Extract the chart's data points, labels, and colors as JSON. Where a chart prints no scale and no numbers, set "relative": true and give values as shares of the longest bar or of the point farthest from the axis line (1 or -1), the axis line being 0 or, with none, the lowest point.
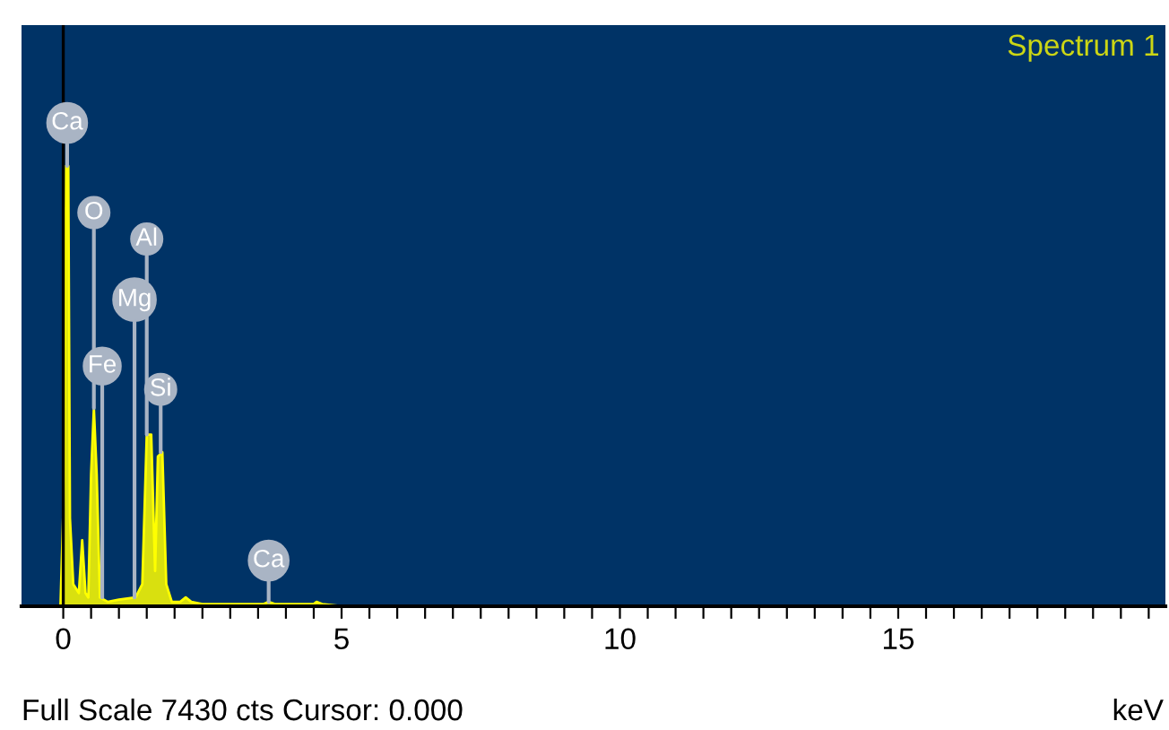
{
  "chart_data": {
    "type": "area",
    "relative": true,
    "xlabel": "keV",
    "x": [
      -0.05,
      0.02,
      0.05,
      0.09,
      0.12,
      0.18,
      0.28,
      0.34,
      0.4,
      0.45,
      0.5,
      0.55,
      0.6,
      0.66,
      0.8,
      1.0,
      1.3,
      1.42,
      1.5,
      1.58,
      1.65,
      1.7,
      1.78,
      1.85,
      1.95,
      2.1,
      2.2,
      2.3,
      2.5,
      3.6,
      3.69,
      3.8,
      4.5,
      4.55,
      4.65,
      5.0,
      19.8
    ],
    "series": [
      {
        "name": "Spectrum 1",
        "color": "#ffff00",
        "values": [
          0,
          0.3,
          1.0,
          1.0,
          0.2,
          0.05,
          0.03,
          0.15,
          0.03,
          0.02,
          0.3,
          0.45,
          0.3,
          0.02,
          0.01,
          0.015,
          0.02,
          0.05,
          0.39,
          0.39,
          0.08,
          0.34,
          0.35,
          0.05,
          0.01,
          0.01,
          0.02,
          0.01,
          0.005,
          0.005,
          0.01,
          0.005,
          0.005,
          0.01,
          0.005,
          0,
          0
        ]
      }
    ],
    "xlim": [
      -0.75,
      19.8
    ],
    "xticks": [
      0,
      {
        "value": 0.5,
        "label": null
      },
      {
        "value": 1,
        "label": null
      },
      {
        "value": 1.5,
        "label": null
      },
      {
        "value": 2,
        "label": null
      },
      {
        "value": 2.5,
        "label": null
      },
      {
        "value": 3,
        "label": null
      },
      {
        "value": 3.5,
        "label": null
      },
      {
        "value": 4,
        "label": null
      },
      {
        "value": 4.5,
        "label": null
      },
      5,
      {
        "value": 5.5,
        "label": null
      },
      {
        "value": 6,
        "label": null
      },
      {
        "value": 6.5,
        "label": null
      },
      {
        "value": 7,
        "label": null
      },
      {
        "value": 7.5,
        "label": null
      },
      {
        "value": 8,
        "label": null
      },
      {
        "value": 8.5,
        "label": null
      },
      {
        "value": 9,
        "label": null
      },
      {
        "value": 9.5,
        "label": null
      },
      10,
      {
        "value": 10.5,
        "label": null
      },
      {
        "value": 11,
        "label": null
      },
      {
        "value": 11.5,
        "label": null
      },
      {
        "value": 12,
        "label": null
      },
      {
        "value": 12.5,
        "label": null
      },
      {
        "value": 13,
        "label": null
      },
      {
        "value": 13.5,
        "label": null
      },
      {
        "value": 14,
        "label": null
      },
      {
        "value": 14.5,
        "label": null
      },
      15,
      {
        "value": 15.5,
        "label": null
      },
      {
        "value": 16,
        "label": null
      },
      {
        "value": 16.5,
        "label": null
      },
      {
        "value": 17,
        "label": null
      },
      {
        "value": 17.5,
        "label": null
      },
      {
        "value": 18,
        "label": null
      },
      {
        "value": 18.5,
        "label": null
      },
      {
        "value": 19,
        "label": null
      },
      {
        "value": 19.5,
        "label": null
      }
    ],
    "ref_lines": [
      {
        "axis": "x",
        "value": 0,
        "color": "#000000"
      }
    ],
    "grid": false,
    "legend": "top right",
    "annotations": [
      {
        "text": "Ca",
        "x": 0.07,
        "y": 1.0
      },
      {
        "text": "O",
        "x": 0.55,
        "y": 0.45
      },
      {
        "text": "Al",
        "x": 1.5,
        "y": 0.39
      },
      {
        "text": "Mg",
        "x": 1.28,
        "y": 0.02
      },
      {
        "text": "Fe",
        "x": 0.7,
        "y": 0.02
      },
      {
        "text": "Si",
        "x": 1.75,
        "y": 0.35
      },
      {
        "text": "Ca",
        "x": 3.69,
        "y": 0.01
      },
      "Full Scale 7430 cts Cursor: 0.000"
    ]
  }
}
